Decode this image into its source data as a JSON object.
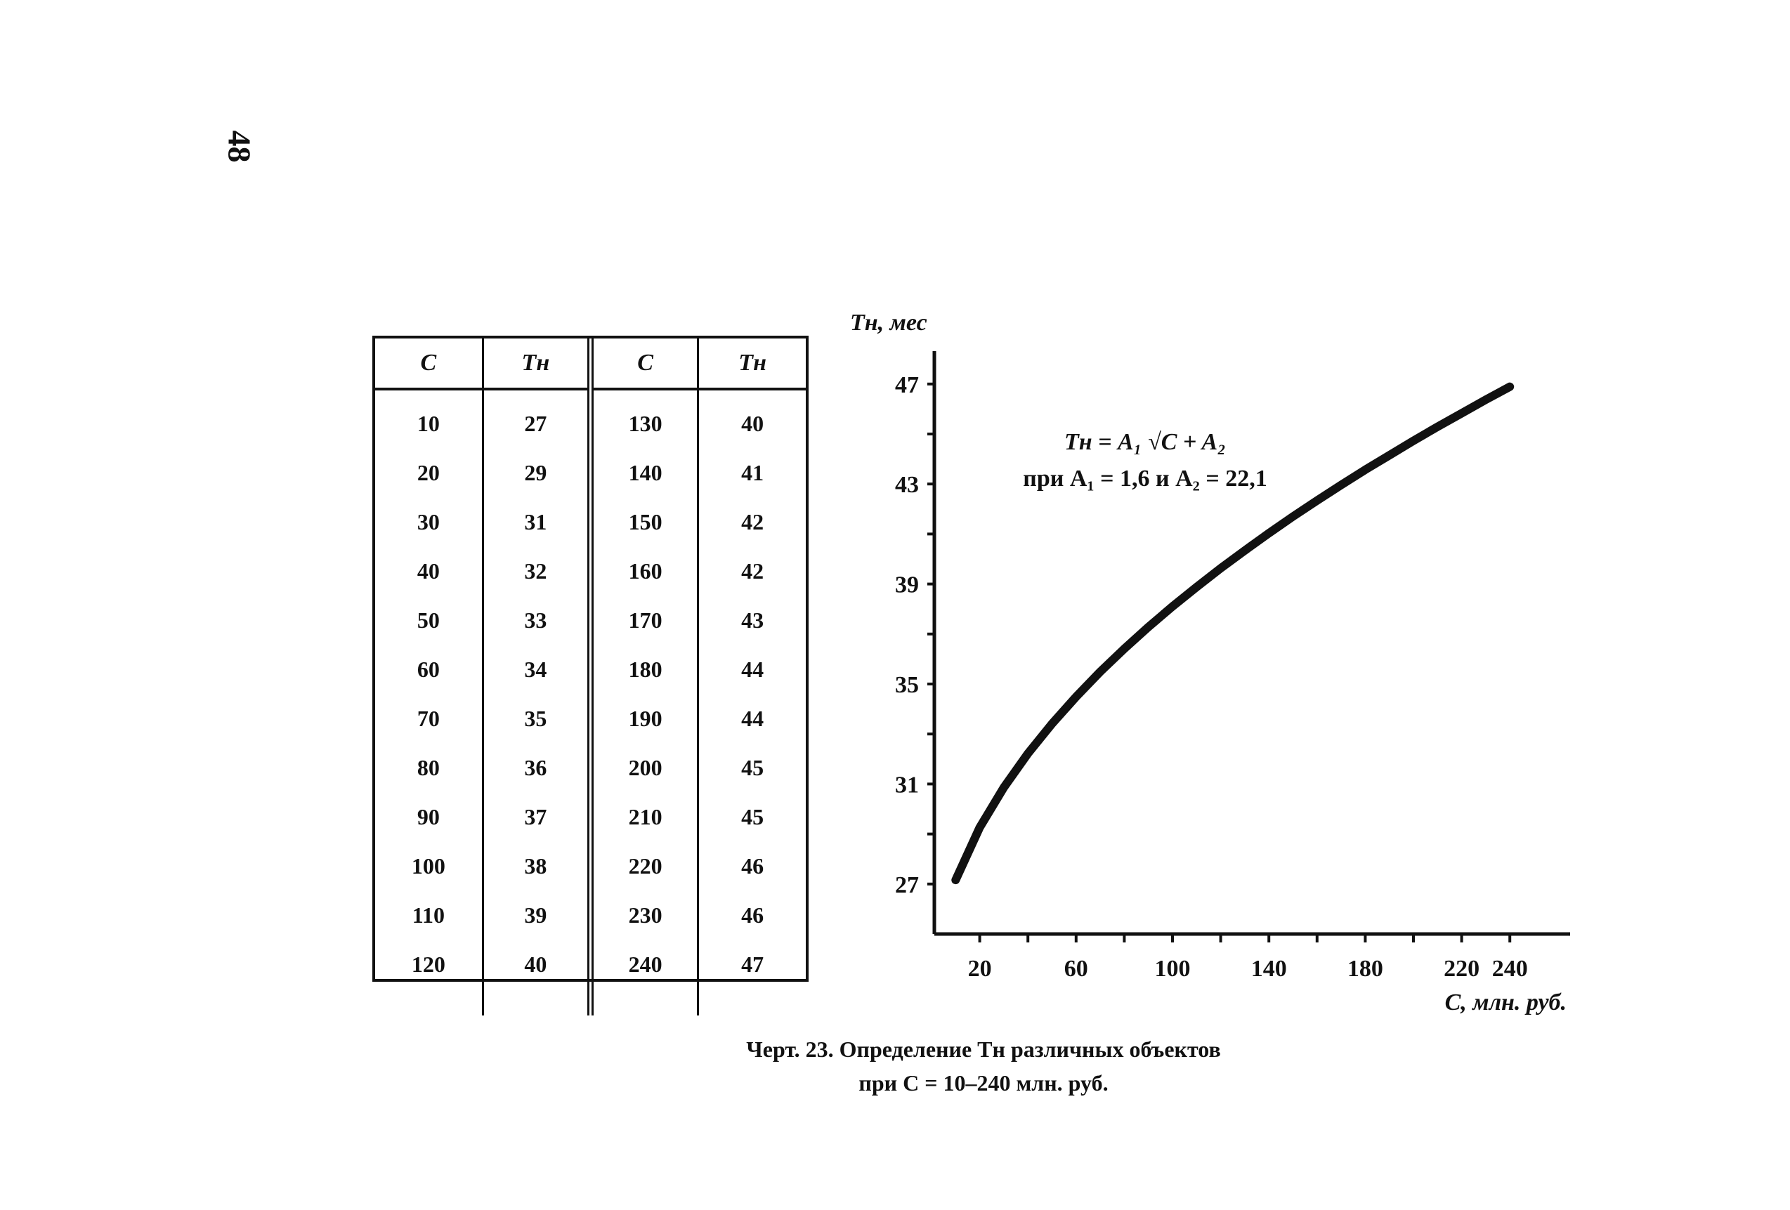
{
  "page": {
    "number": "48"
  },
  "table": {
    "headers": [
      "C",
      "Tн",
      "C",
      "Tн"
    ],
    "left": {
      "c": [
        "10",
        "20",
        "30",
        "40",
        "50",
        "60",
        "70",
        "80",
        "90",
        "100",
        "110",
        "120"
      ],
      "t": [
        "27",
        "29",
        "31",
        "32",
        "33",
        "34",
        "35",
        "36",
        "37",
        "38",
        "39",
        "40"
      ]
    },
    "right": {
      "c": [
        "130",
        "140",
        "150",
        "160",
        "170",
        "180",
        "190",
        "200",
        "210",
        "220",
        "230",
        "240"
      ],
      "t": [
        "40",
        "41",
        "42",
        "42",
        "43",
        "44",
        "44",
        "45",
        "45",
        "46",
        "46",
        "47"
      ]
    }
  },
  "chart_data": {
    "type": "line",
    "ylabel": "Tн, мес",
    "xlabel": "C, млн. руб.",
    "x_ticks": [
      "20",
      "60",
      "100",
      "140",
      "180",
      "220",
      "240"
    ],
    "y_ticks": [
      "27",
      "31",
      "35",
      "39",
      "43",
      "47"
    ],
    "xlim": [
      0,
      250
    ],
    "ylim": [
      25,
      48
    ],
    "formula_line1": "Tн = A₁ √C + A₂",
    "formula_line2": "при A₁ = 1,6 и A₂ = 22,1",
    "series": [
      {
        "x": [
          10,
          20,
          30,
          40,
          50,
          60,
          70,
          80,
          90,
          100,
          110,
          120,
          130,
          140,
          150,
          160,
          170,
          180,
          190,
          200,
          210,
          220,
          230,
          240
        ],
        "y": [
          27.16,
          29.26,
          30.86,
          32.22,
          33.41,
          34.49,
          35.49,
          36.41,
          37.28,
          38.1,
          38.88,
          39.63,
          40.34,
          41.03,
          41.7,
          42.34,
          42.96,
          43.57,
          44.15,
          44.73,
          45.29,
          45.83,
          46.37,
          46.89
        ]
      }
    ]
  },
  "caption": {
    "line1": "Черт. 23. Определение Tн различных объектов",
    "line2": "при C = 10–240 млн. руб."
  }
}
